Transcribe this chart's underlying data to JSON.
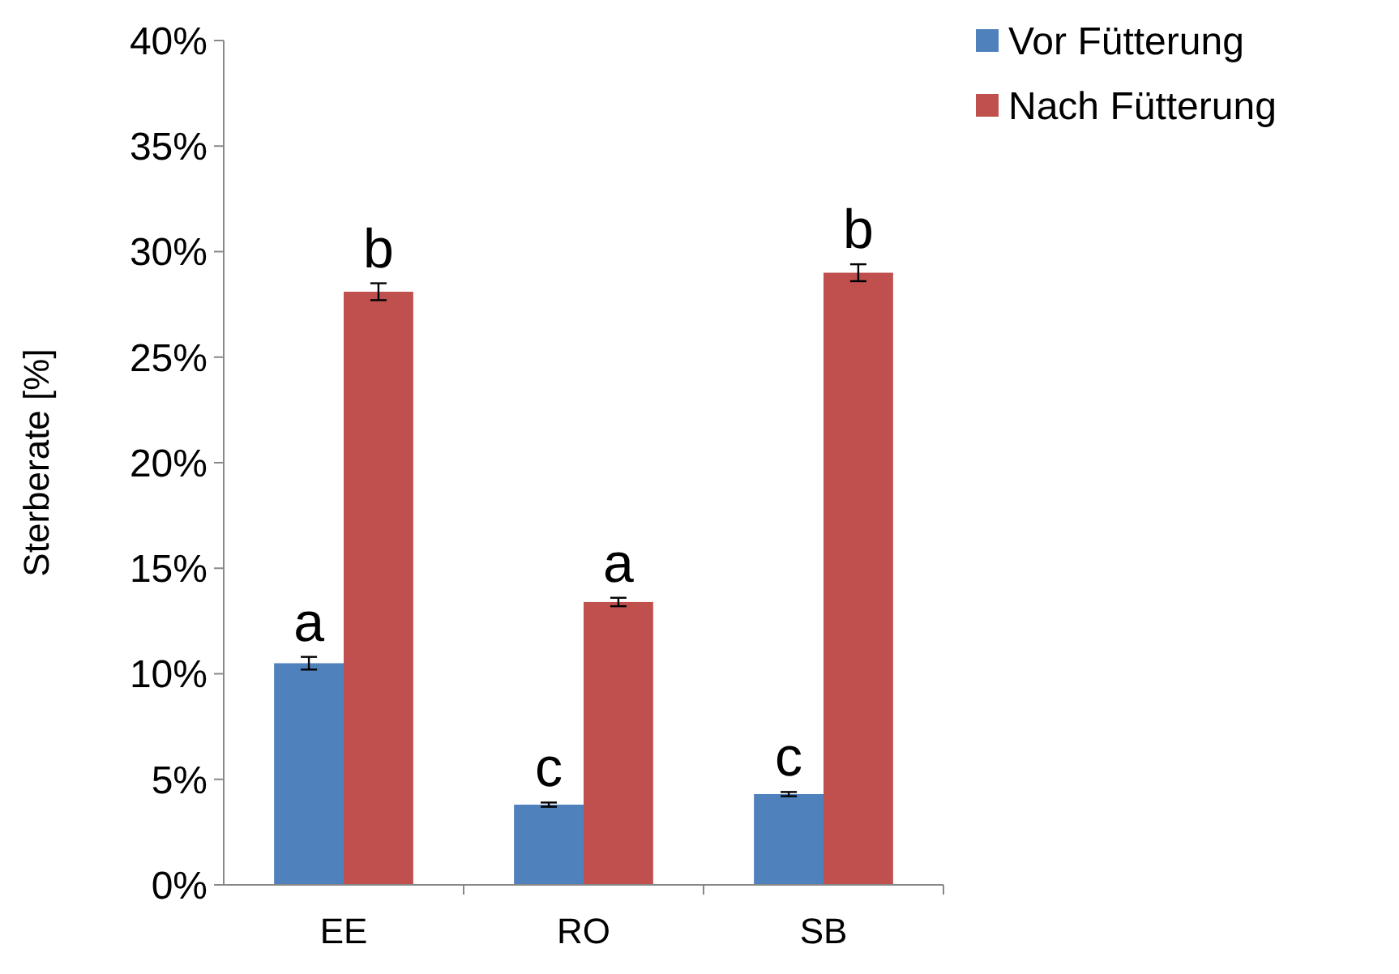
{
  "chart_data": {
    "type": "bar",
    "ylabel": "Sterberate [%]",
    "categories": [
      "EE",
      "RO",
      "SB"
    ],
    "series": [
      {
        "name": "Vor Fütterung",
        "color": "#4f81bd",
        "values": [
          10.5,
          3.8,
          4.3
        ],
        "errors": [
          0.3,
          0.1,
          0.1
        ]
      },
      {
        "name": "Nach Fütterung",
        "color": "#c0504d",
        "values": [
          28.1,
          13.4,
          29.0
        ],
        "errors": [
          0.4,
          0.2,
          0.4
        ]
      }
    ],
    "ylim": [
      0,
      40
    ],
    "yticks": [
      {
        "value": 0,
        "label": "0%"
      },
      {
        "value": 5,
        "label": "5%"
      },
      {
        "value": 10,
        "label": "10%"
      },
      {
        "value": 15,
        "label": "15%"
      },
      {
        "value": 20,
        "label": "20%"
      },
      {
        "value": 25,
        "label": "25%"
      },
      {
        "value": 30,
        "label": "30%"
      },
      {
        "value": 35,
        "label": "35%"
      },
      {
        "value": 40,
        "label": "40%"
      }
    ],
    "grid": false,
    "legend": "top right",
    "annotations": [
      {
        "text": "a",
        "x": "EE",
        "y": 10.5
      },
      {
        "text": "b",
        "x": "EE",
        "y": 28.1
      },
      {
        "text": "c",
        "x": "RO",
        "y": 3.8
      },
      {
        "text": "a",
        "x": "RO",
        "y": 13.4
      },
      {
        "text": "c",
        "x": "SB",
        "y": 4.3
      },
      {
        "text": "b",
        "x": "SB",
        "y": 29.0
      }
    ]
  }
}
